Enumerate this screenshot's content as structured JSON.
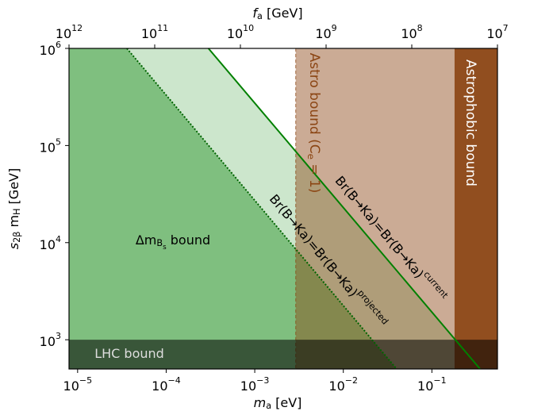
{
  "chart_data": {
    "type": "region",
    "xlabel": [
      {
        "t": "m"
      },
      {
        "t": "a",
        "s": "sub"
      },
      {
        "t": " [eV]"
      }
    ],
    "x2label": [
      {
        "t": "f"
      },
      {
        "t": "a",
        "s": "sub"
      },
      {
        "t": " [GeV]"
      }
    ],
    "ylabel": [
      {
        "t": "s"
      },
      {
        "t": "2β",
        "s": "sub"
      },
      {
        "t": " m"
      },
      {
        "t": "H",
        "s": "sub"
      },
      {
        "t": " [GeV]"
      }
    ],
    "xscale": "log",
    "yscale": "log",
    "xlim": [
      8e-06,
      0.55
    ],
    "x2lim": [
      1000000000000.0,
      10000000.0
    ],
    "ylim": [
      500,
      1000000
    ],
    "xticks": [
      {
        "value": 1e-05,
        "label": "10",
        "exponent": "−5"
      },
      {
        "value": 0.0001,
        "label": "10",
        "exponent": "−4"
      },
      {
        "value": 0.001,
        "label": "10",
        "exponent": "−3"
      },
      {
        "value": 0.01,
        "label": "10",
        "exponent": "−2"
      },
      {
        "value": 0.1,
        "label": "10",
        "exponent": "−1"
      }
    ],
    "x2ticks": [
      {
        "value": 1000000000000.0,
        "label": "10",
        "exponent": "12"
      },
      {
        "value": 100000000000.0,
        "label": "10",
        "exponent": "11"
      },
      {
        "value": 10000000000.0,
        "label": "10",
        "exponent": "10"
      },
      {
        "value": 1000000000.0,
        "label": "10",
        "exponent": "9"
      },
      {
        "value": 100000000.0,
        "label": "10",
        "exponent": "8"
      },
      {
        "value": 10000000.0,
        "label": "10",
        "exponent": "7"
      }
    ],
    "yticks": [
      {
        "value": 1000,
        "label": "10",
        "exponent": "3"
      },
      {
        "value": 10000,
        "label": "10",
        "exponent": "4"
      },
      {
        "value": 100000,
        "label": "10",
        "exponent": "5"
      },
      {
        "value": 1000000,
        "label": "10",
        "exponent": "6"
      }
    ],
    "regions": [
      {
        "label": [
          {
            "t": "Δm"
          },
          {
            "t": "B",
            "s": "sub"
          },
          {
            "t": "s",
            "s": "subsub"
          },
          {
            "t": " bound"
          }
        ],
        "color": "#008000",
        "opacity": 0.5,
        "x": [
          8e-06,
          3.6e-05,
          0.04,
          8e-06
        ],
        "y": [
          1000000,
          1000000,
          500,
          500
        ],
        "text_color": "#000000"
      },
      {
        "color": "#008000",
        "opacity": 0.2,
        "x": [
          3.6e-05,
          0.0003,
          0.35,
          0.04
        ],
        "y": [
          1000000,
          1000000,
          500,
          500
        ]
      },
      {
        "label": [
          {
            "t": "Astro bound (C"
          },
          {
            "t": "e",
            "s": "sub"
          },
          {
            "t": " = 1)"
          }
        ],
        "color": "#8b4513",
        "opacity": 0.45,
        "x": [
          0.0029,
          0.18,
          0.18,
          0.0029
        ],
        "y": [
          1000000,
          1000000,
          500,
          500
        ],
        "text_color": "#8b4513",
        "dashed_edge": true
      },
      {
        "label": [
          {
            "t": "Astrophobic bound"
          }
        ],
        "color": "#8b4513",
        "opacity": 0.95,
        "x": [
          0.18,
          0.55,
          0.55,
          0.18
        ],
        "y": [
          1000000,
          1000000,
          500,
          500
        ],
        "text_color": "#ffffff"
      },
      {
        "label": [
          {
            "t": "LHC bound"
          }
        ],
        "color": "#000000",
        "opacity": 0.55,
        "x": [
          8e-06,
          0.55,
          0.55,
          8e-06
        ],
        "y": [
          1000,
          1000,
          500,
          500
        ],
        "text_color": "#dddddd"
      }
    ],
    "series": [
      {
        "label": [
          {
            "t": "Br(B→Ka)=Br(B→Ka)"
          },
          {
            "t": "projected",
            "s": "sup"
          }
        ],
        "color": "#006400",
        "style": "dotted",
        "x": [
          3.6e-05,
          0.04
        ],
        "y": [
          1000000,
          500
        ]
      },
      {
        "label": [
          {
            "t": "Br(B→Ka)=Br(B→Ka)"
          },
          {
            "t": "current",
            "s": "sup"
          }
        ],
        "color": "#008000",
        "style": "solid",
        "x": [
          0.0003,
          0.35
        ],
        "y": [
          1000000,
          500
        ]
      }
    ]
  }
}
